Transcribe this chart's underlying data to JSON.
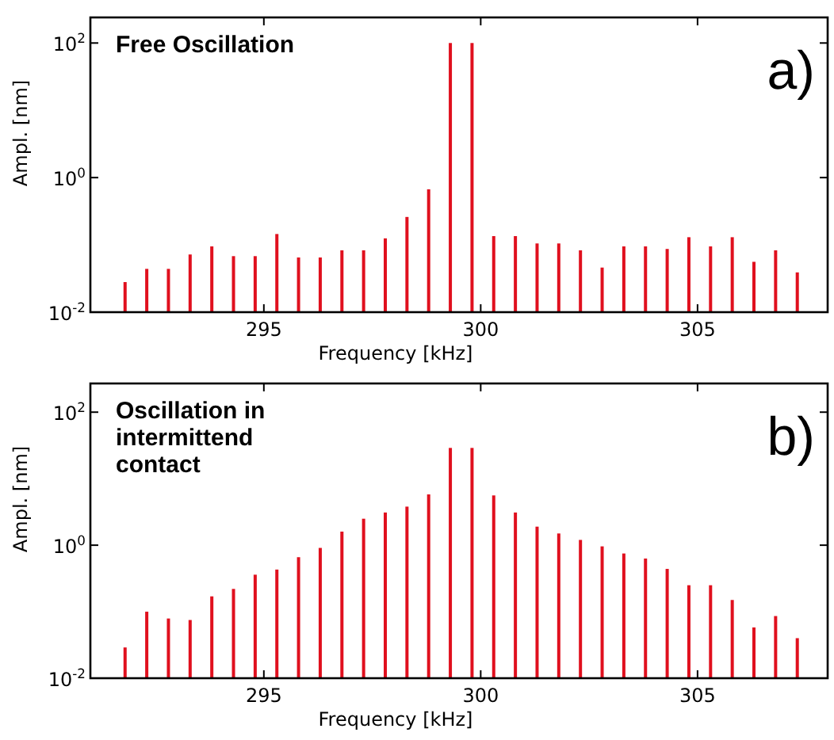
{
  "chart_data": [
    {
      "type": "bar",
      "title": "Free Oscillation",
      "xlabel": "Frequency [kHz]",
      "ylabel": "Ampl. [nm]",
      "annotations": [
        "a)"
      ],
      "log": "y",
      "grid": false,
      "color": "#e0101e",
      "x": [
        291.8,
        292.3,
        292.8,
        293.3,
        293.8,
        294.3,
        294.8,
        295.3,
        295.8,
        296.3,
        296.8,
        297.3,
        297.8,
        298.3,
        298.8,
        299.3,
        299.8,
        300.3,
        300.8,
        301.3,
        301.8,
        302.3,
        302.8,
        303.3,
        303.8,
        304.3,
        304.8,
        305.3,
        305.8,
        306.3,
        306.8,
        307.3
      ],
      "values": [
        0.028,
        0.044,
        0.044,
        0.072,
        0.095,
        0.068,
        0.068,
        0.145,
        0.065,
        0.065,
        0.083,
        0.083,
        0.125,
        0.26,
        0.67,
        100,
        100,
        0.135,
        0.135,
        0.105,
        0.105,
        0.083,
        0.046,
        0.095,
        0.095,
        0.087,
        0.13,
        0.095,
        0.13,
        0.056,
        0.083,
        0.039
      ],
      "xlim": [
        291,
        308
      ],
      "xticks": [
        295,
        300,
        305
      ],
      "ylim": [
        0.01,
        240
      ],
      "yticks": [
        {
          "value": 0.01,
          "label": "10$^{-2}$"
        },
        {
          "value": 1,
          "label": "10$^{0}$"
        },
        {
          "value": 100,
          "label": "10$^{2}$"
        }
      ]
    },
    {
      "type": "bar",
      "title": "Oscillation in intermittend contact",
      "xlabel": "Frequency [kHz]",
      "ylabel": "Ampl. [nm]",
      "annotations": [
        "b)"
      ],
      "log": "y",
      "grid": false,
      "color": "#e0101e",
      "x": [
        291.8,
        292.3,
        292.8,
        293.3,
        293.8,
        294.3,
        294.8,
        295.3,
        295.8,
        296.3,
        296.8,
        297.3,
        297.8,
        298.3,
        298.8,
        299.3,
        299.8,
        300.3,
        300.8,
        301.3,
        301.8,
        302.3,
        302.8,
        303.3,
        303.8,
        304.3,
        304.8,
        305.3,
        305.8,
        306.3,
        306.8,
        307.3
      ],
      "values": [
        0.029,
        0.1,
        0.079,
        0.075,
        0.17,
        0.22,
        0.36,
        0.43,
        0.66,
        0.91,
        1.6,
        2.5,
        3.1,
        3.8,
        5.8,
        29,
        29,
        5.6,
        3.1,
        1.9,
        1.5,
        1.2,
        0.96,
        0.75,
        0.63,
        0.44,
        0.25,
        0.25,
        0.15,
        0.058,
        0.086,
        0.04
      ],
      "xlim": [
        291,
        308
      ],
      "xticks": [
        295,
        300,
        305
      ],
      "ylim": [
        0.01,
        270
      ],
      "yticks": [
        {
          "value": 0.01,
          "label": "10$^{-2}$"
        },
        {
          "value": 1,
          "label": "10$^{0}$"
        },
        {
          "value": 100,
          "label": "10$^{2}$"
        }
      ]
    }
  ]
}
